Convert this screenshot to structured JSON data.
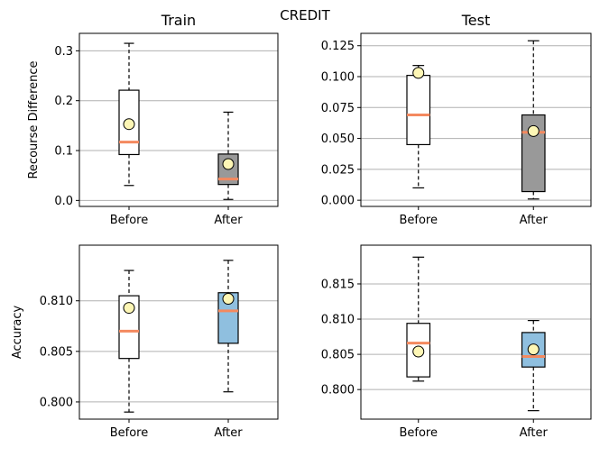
{
  "figure": {
    "title": "CREDIT"
  },
  "colors": {
    "median": "#f4895f",
    "mean_fill": "#fdf6b5",
    "grid": "#b0b0b0",
    "after_recourse_box": "#999999",
    "after_accuracy_box": "#8fbfdf",
    "before_box": "#ffffff"
  },
  "chart_data": [
    {
      "id": "train-recourse",
      "type": "box",
      "title": "Train",
      "xlabel": "",
      "ylabel": "Recourse Difference",
      "categories": [
        "Before",
        "After"
      ],
      "ylim": [
        -0.012,
        0.335
      ],
      "yticks": [
        0.0,
        0.1,
        0.2,
        0.3
      ],
      "yticklabels": [
        "0.0",
        "0.1",
        "0.2",
        "0.3"
      ],
      "grid": true,
      "boxes": [
        {
          "label": "Before",
          "whislo": 0.03,
          "q1": 0.092,
          "med": 0.117,
          "q3": 0.221,
          "whishi": 0.315,
          "mean": 0.153,
          "fill": "#ffffff"
        },
        {
          "label": "After",
          "whislo": 0.002,
          "q1": 0.032,
          "med": 0.043,
          "q3": 0.093,
          "whishi": 0.177,
          "mean": 0.073,
          "fill": "#999999"
        }
      ]
    },
    {
      "id": "test-recourse",
      "type": "box",
      "title": "Test",
      "xlabel": "",
      "ylabel": "",
      "categories": [
        "Before",
        "After"
      ],
      "ylim": [
        -0.005,
        0.135
      ],
      "yticks": [
        0.0,
        0.025,
        0.05,
        0.075,
        0.1,
        0.125
      ],
      "yticklabels": [
        "0.000",
        "0.025",
        "0.050",
        "0.075",
        "0.100",
        "0.125"
      ],
      "grid": true,
      "boxes": [
        {
          "label": "Before",
          "whislo": 0.01,
          "q1": 0.045,
          "med": 0.069,
          "q3": 0.101,
          "whishi": 0.109,
          "mean": 0.103,
          "fill": "#ffffff"
        },
        {
          "label": "After",
          "whislo": 0.001,
          "q1": 0.007,
          "med": 0.055,
          "q3": 0.069,
          "whishi": 0.129,
          "mean": 0.056,
          "fill": "#999999"
        }
      ]
    },
    {
      "id": "train-accuracy",
      "type": "box",
      "title": "",
      "xlabel": "",
      "ylabel": "Accuracy",
      "categories": [
        "Before",
        "After"
      ],
      "ylim": [
        0.7983,
        0.8155
      ],
      "yticks": [
        0.8,
        0.805,
        0.81
      ],
      "yticklabels": [
        "0.800",
        "0.805",
        "0.810"
      ],
      "grid": true,
      "boxes": [
        {
          "label": "Before",
          "whislo": 0.799,
          "q1": 0.8043,
          "med": 0.807,
          "q3": 0.8105,
          "whishi": 0.813,
          "mean": 0.8093,
          "fill": "#ffffff"
        },
        {
          "label": "After",
          "whislo": 0.801,
          "q1": 0.8058,
          "med": 0.809,
          "q3": 0.8108,
          "whishi": 0.814,
          "mean": 0.8102,
          "fill": "#8fbfdf"
        }
      ]
    },
    {
      "id": "test-accuracy",
      "type": "box",
      "title": "",
      "xlabel": "",
      "ylabel": "",
      "categories": [
        "Before",
        "After"
      ],
      "ylim": [
        0.7958,
        0.8205
      ],
      "yticks": [
        0.8,
        0.805,
        0.81,
        0.815
      ],
      "yticklabels": [
        "0.800",
        "0.805",
        "0.810",
        "0.815"
      ],
      "grid": true,
      "boxes": [
        {
          "label": "Before",
          "whislo": 0.8012,
          "q1": 0.8018,
          "med": 0.8066,
          "q3": 0.8094,
          "whishi": 0.8188,
          "mean": 0.8054,
          "fill": "#ffffff"
        },
        {
          "label": "After",
          "whislo": 0.797,
          "q1": 0.8032,
          "med": 0.8047,
          "q3": 0.8081,
          "whishi": 0.8098,
          "mean": 0.8057,
          "fill": "#8fbfdf"
        }
      ]
    }
  ]
}
